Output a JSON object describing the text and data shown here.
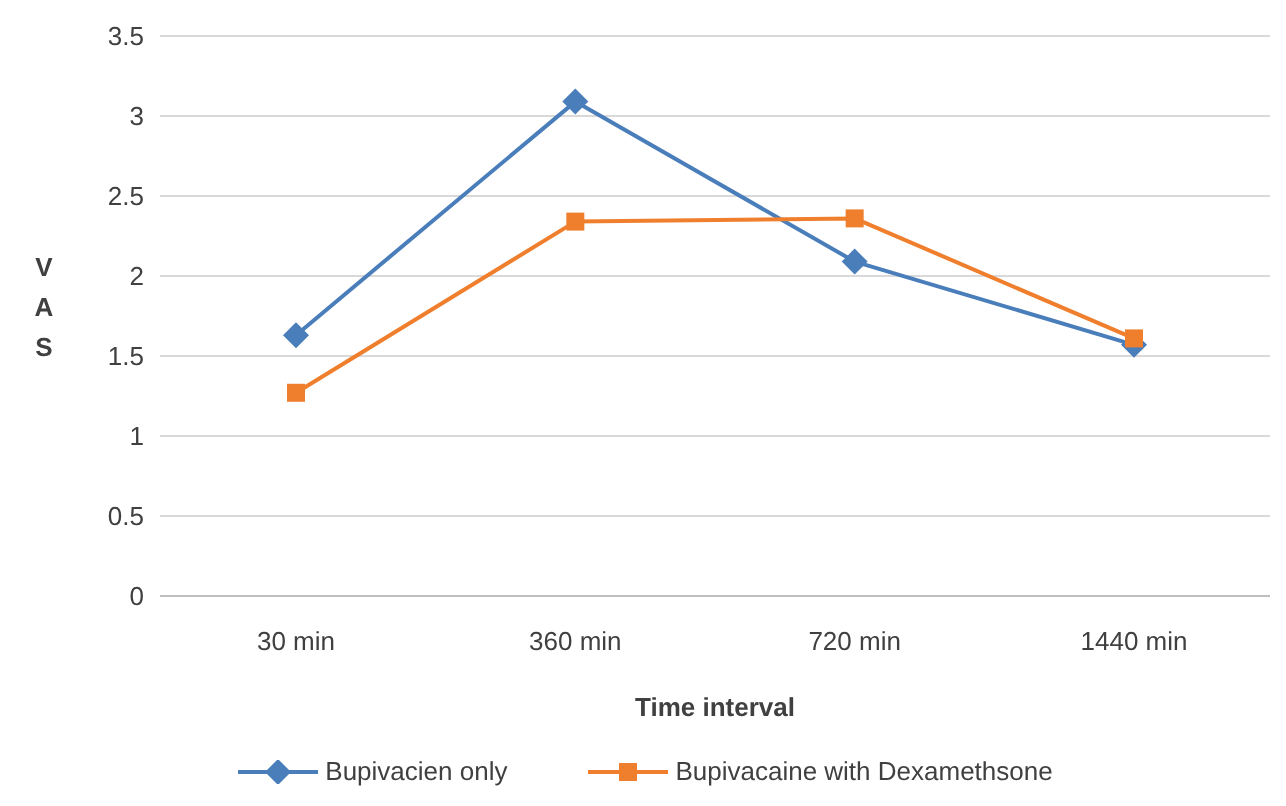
{
  "chart_data": {
    "type": "line",
    "xlabel": "Time interval",
    "ylabel": "VAS",
    "categories": [
      "30 min",
      "360 min",
      "720 min",
      "1440 min"
    ],
    "series": [
      {
        "name": "Bupivacien only",
        "color": "#4a7ebb",
        "marker": "diamond",
        "values": [
          1.63,
          3.09,
          2.09,
          1.57
        ]
      },
      {
        "name": "Bupivacaine with Dexamethsone",
        "color": "#f07f2d",
        "marker": "square",
        "values": [
          1.27,
          2.34,
          2.36,
          1.61
        ]
      }
    ],
    "ylim": [
      0,
      3.5
    ],
    "yticks": [
      0,
      0.5,
      1,
      1.5,
      2,
      2.5,
      3,
      3.5
    ],
    "grid": "y",
    "legend": "bottom"
  }
}
